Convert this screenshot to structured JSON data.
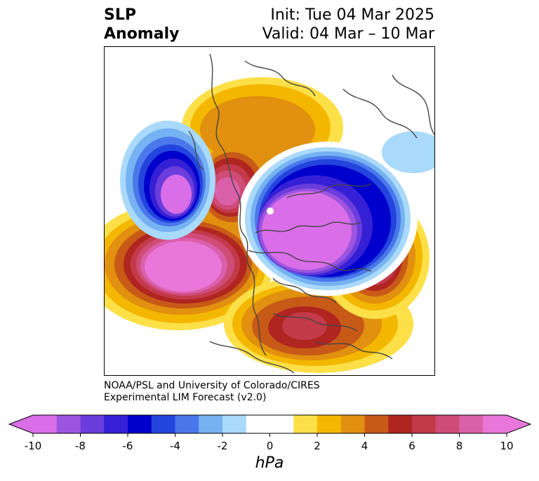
{
  "title": {
    "line1": "SLP",
    "line2": "Anomaly"
  },
  "init_text": "Init: Tue 04 Mar 2025",
  "valid_text": "Valid: 04 Mar – 10 Mar",
  "credit": {
    "line1": "NOAA/PSL and University of Colorado/CIRES",
    "line2": "Experimental LIM Forecast (v2.0)"
  },
  "colorbar": {
    "unit": "hPa",
    "ticks": [
      "-10",
      "-8",
      "-6",
      "-4",
      "-2",
      "0",
      "2",
      "4",
      "6",
      "8",
      "10"
    ],
    "tick_values": [
      -10,
      -8,
      -6,
      -4,
      -2,
      0,
      2,
      4,
      6,
      8,
      10
    ],
    "levels": [
      -10,
      -9,
      -8,
      -7,
      -6,
      -5,
      -4,
      -3,
      -2,
      -1,
      1,
      2,
      3,
      4,
      5,
      6,
      7,
      8,
      9,
      10
    ],
    "under_color": "#d96ee8",
    "over_color": "#e977d9",
    "colors": [
      "#d96ee8",
      "#9c55e0",
      "#6b3ddc",
      "#3520d6",
      "#0000cc",
      "#2344dd",
      "#4a77ea",
      "#76b2f2",
      "#a9d9fb",
      "#ffffff",
      "#fde048",
      "#f4b700",
      "#e1900f",
      "#c85a18",
      "#b02520",
      "#c33a4b",
      "#cf4c77",
      "#da60aa",
      "#e977d9"
    ]
  },
  "legend_colors": {
    "deep_low": "#d96ee8",
    "low_core": "#0000cc",
    "low_edge": "#a9d9fb",
    "high_edge": "#fde048",
    "high_mid": "#e1900f",
    "high_strong": "#b02520",
    "high_core": "#e977d9"
  }
}
